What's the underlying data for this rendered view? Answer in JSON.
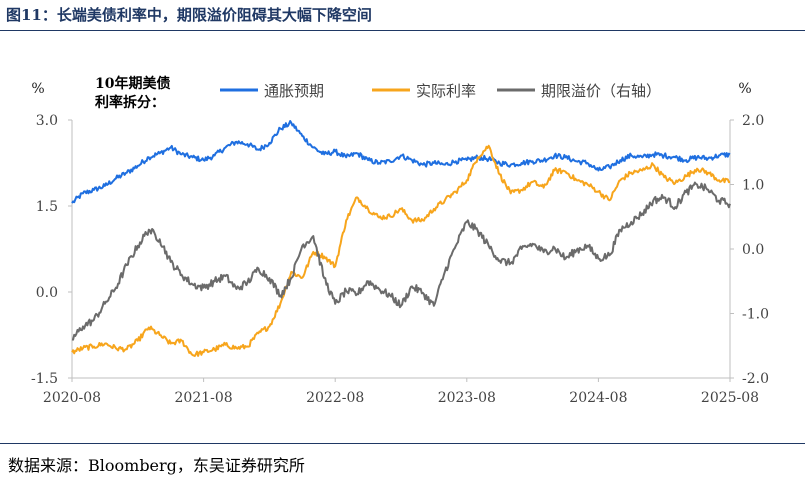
{
  "figure_title": "图11：长端美债利率中，期限溢价阻碍其大幅下降空间",
  "source_note": "数据来源：Bloomberg，东吴证券研究所",
  "chart_data": {
    "type": "line",
    "subtitle_lines": [
      "10年期美债",
      "利率拆分："
    ],
    "left_axis_unit": "%",
    "right_axis_unit": "%",
    "left_ylim": [
      -1.5,
      3.0
    ],
    "right_ylim": [
      -2.0,
      2.0
    ],
    "left_ticks": [
      "3.0",
      "1.5",
      "0.0",
      "-1.5"
    ],
    "right_ticks": [
      "2.0",
      "1.0",
      "0.0",
      "-1.0",
      "-2.0"
    ],
    "x_tick_labels": [
      "2020-08",
      "2021-08",
      "2022-08",
      "2023-08",
      "2024-08",
      "2025-08"
    ],
    "x_range": [
      "2020-08",
      "2025-08"
    ],
    "legend_position": "top",
    "grid": false,
    "series": [
      {
        "name": "通胀预期",
        "axis": "left",
        "color": "#1f6fe0",
        "x": [
          "2020-08",
          "2020-09",
          "2020-10",
          "2020-11",
          "2020-12",
          "2021-01",
          "2021-02",
          "2021-03",
          "2021-04",
          "2021-05",
          "2021-06",
          "2021-07",
          "2021-08",
          "2021-09",
          "2021-10",
          "2021-11",
          "2021-12",
          "2022-01",
          "2022-02",
          "2022-03",
          "2022-04",
          "2022-05",
          "2022-06",
          "2022-07",
          "2022-08",
          "2022-09",
          "2022-10",
          "2022-11",
          "2022-12",
          "2023-01",
          "2023-02",
          "2023-03",
          "2023-04",
          "2023-05",
          "2023-06",
          "2023-07",
          "2023-08",
          "2023-09",
          "2023-10",
          "2023-11",
          "2023-12",
          "2024-01",
          "2024-02",
          "2024-03",
          "2024-04",
          "2024-05",
          "2024-06",
          "2024-07",
          "2024-08",
          "2024-09",
          "2024-10",
          "2024-11",
          "2024-12",
          "2025-01",
          "2025-02",
          "2025-03",
          "2025-04",
          "2025-05",
          "2025-06",
          "2025-07",
          "2025-08"
        ],
        "values": [
          1.55,
          1.72,
          1.78,
          1.85,
          1.98,
          2.08,
          2.2,
          2.35,
          2.42,
          2.52,
          2.4,
          2.35,
          2.3,
          2.38,
          2.52,
          2.62,
          2.58,
          2.48,
          2.6,
          2.85,
          2.95,
          2.72,
          2.52,
          2.4,
          2.45,
          2.35,
          2.42,
          2.3,
          2.25,
          2.28,
          2.38,
          2.3,
          2.22,
          2.25,
          2.22,
          2.28,
          2.3,
          2.35,
          2.32,
          2.25,
          2.22,
          2.25,
          2.28,
          2.3,
          2.38,
          2.35,
          2.28,
          2.25,
          2.12,
          2.18,
          2.3,
          2.38,
          2.35,
          2.4,
          2.38,
          2.35,
          2.3,
          2.35,
          2.33,
          2.38,
          2.4
        ]
      },
      {
        "name": "实际利率",
        "axis": "left",
        "color": "#f7a51c",
        "x": [
          "2020-08",
          "2020-09",
          "2020-10",
          "2020-11",
          "2020-12",
          "2021-01",
          "2021-02",
          "2021-03",
          "2021-04",
          "2021-05",
          "2021-06",
          "2021-07",
          "2021-08",
          "2021-09",
          "2021-10",
          "2021-11",
          "2021-12",
          "2022-01",
          "2022-02",
          "2022-03",
          "2022-04",
          "2022-05",
          "2022-06",
          "2022-07",
          "2022-08",
          "2022-09",
          "2022-10",
          "2022-11",
          "2022-12",
          "2023-01",
          "2023-02",
          "2023-03",
          "2023-04",
          "2023-05",
          "2023-06",
          "2023-07",
          "2023-08",
          "2023-09",
          "2023-10",
          "2023-11",
          "2023-12",
          "2024-01",
          "2024-02",
          "2024-03",
          "2024-04",
          "2024-05",
          "2024-06",
          "2024-07",
          "2024-08",
          "2024-09",
          "2024-10",
          "2024-11",
          "2024-12",
          "2025-01",
          "2025-02",
          "2025-03",
          "2025-04",
          "2025-05",
          "2025-06",
          "2025-07",
          "2025-08"
        ],
        "values": [
          -1.05,
          -0.98,
          -0.95,
          -0.9,
          -0.98,
          -1.0,
          -0.85,
          -0.62,
          -0.75,
          -0.9,
          -0.85,
          -1.1,
          -1.05,
          -1.0,
          -0.92,
          -0.98,
          -0.95,
          -0.72,
          -0.6,
          -0.2,
          0.35,
          0.25,
          0.7,
          0.62,
          0.45,
          1.25,
          1.65,
          1.45,
          1.3,
          1.32,
          1.45,
          1.25,
          1.25,
          1.45,
          1.6,
          1.75,
          1.95,
          2.35,
          2.55,
          2.05,
          1.72,
          1.78,
          1.92,
          1.82,
          2.12,
          2.1,
          1.95,
          1.88,
          1.75,
          1.6,
          1.95,
          2.08,
          2.12,
          2.22,
          2.0,
          1.9,
          2.02,
          2.15,
          2.08,
          1.95,
          1.92
        ]
      },
      {
        "name": "期限溢价（右轴）",
        "axis": "right",
        "color": "#6b6b6b",
        "x": [
          "2020-08",
          "2020-09",
          "2020-10",
          "2020-11",
          "2020-12",
          "2021-01",
          "2021-02",
          "2021-03",
          "2021-04",
          "2021-05",
          "2021-06",
          "2021-07",
          "2021-08",
          "2021-09",
          "2021-10",
          "2021-11",
          "2021-12",
          "2022-01",
          "2022-02",
          "2022-03",
          "2022-04",
          "2022-05",
          "2022-06",
          "2022-07",
          "2022-08",
          "2022-09",
          "2022-10",
          "2022-11",
          "2022-12",
          "2023-01",
          "2023-02",
          "2023-03",
          "2023-04",
          "2023-05",
          "2023-06",
          "2023-07",
          "2023-08",
          "2023-09",
          "2023-10",
          "2023-11",
          "2023-12",
          "2024-01",
          "2024-02",
          "2024-03",
          "2024-04",
          "2024-05",
          "2024-06",
          "2024-07",
          "2024-08",
          "2024-09",
          "2024-10",
          "2024-11",
          "2024-12",
          "2025-01",
          "2025-02",
          "2025-03",
          "2025-04",
          "2025-05",
          "2025-06",
          "2025-07",
          "2025-08"
        ],
        "values": [
          -1.4,
          -1.2,
          -1.1,
          -0.85,
          -0.6,
          -0.25,
          0.05,
          0.3,
          0.15,
          -0.2,
          -0.4,
          -0.55,
          -0.6,
          -0.5,
          -0.42,
          -0.62,
          -0.52,
          -0.3,
          -0.45,
          -0.72,
          -0.45,
          0.05,
          0.2,
          -0.45,
          -0.85,
          -0.65,
          -0.7,
          -0.5,
          -0.62,
          -0.72,
          -0.88,
          -0.58,
          -0.68,
          -0.88,
          -0.35,
          0.05,
          0.42,
          0.28,
          0.05,
          -0.18,
          -0.22,
          0.0,
          0.08,
          -0.05,
          0.02,
          -0.15,
          -0.02,
          0.05,
          -0.15,
          -0.1,
          0.3,
          0.42,
          0.55,
          0.75,
          0.8,
          0.65,
          0.88,
          1.0,
          0.92,
          0.75,
          0.7
        ]
      }
    ]
  }
}
